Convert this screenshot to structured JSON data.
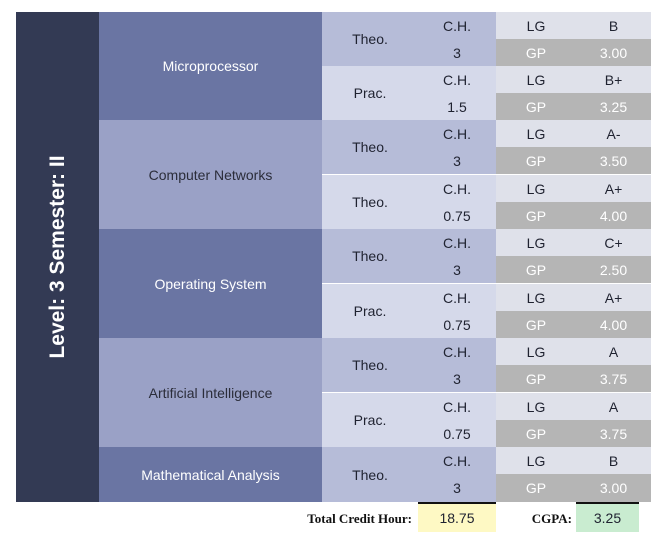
{
  "level_label": "Level: 3 Semester: II",
  "courses": [
    {
      "name": "Microprocessor",
      "parts": [
        {
          "type": "Theo.",
          "ch_label": "C.H.",
          "ch": "3",
          "lg_label": "LG",
          "lg": "B",
          "gp_label": "GP",
          "gp": "3.00"
        },
        {
          "type": "Prac.",
          "ch_label": "C.H.",
          "ch": "1.5",
          "lg_label": "LG",
          "lg": "B+",
          "gp_label": "GP",
          "gp": "3.25"
        }
      ]
    },
    {
      "name": "Computer Networks",
      "parts": [
        {
          "type": "Theo.",
          "ch_label": "C.H.",
          "ch": "3",
          "lg_label": "LG",
          "lg": "A-",
          "gp_label": "GP",
          "gp": "3.50"
        },
        {
          "type": "Theo.",
          "ch_label": "C.H.",
          "ch": "0.75",
          "lg_label": "LG",
          "lg": "A+",
          "gp_label": "GP",
          "gp": "4.00"
        }
      ]
    },
    {
      "name": "Operating System",
      "parts": [
        {
          "type": "Theo.",
          "ch_label": "C.H.",
          "ch": "3",
          "lg_label": "LG",
          "lg": "C+",
          "gp_label": "GP",
          "gp": "2.50"
        },
        {
          "type": "Prac.",
          "ch_label": "C.H.",
          "ch": "0.75",
          "lg_label": "LG",
          "lg": "A+",
          "gp_label": "GP",
          "gp": "4.00"
        }
      ]
    },
    {
      "name": "Artificial Intelligence",
      "parts": [
        {
          "type": "Theo.",
          "ch_label": "C.H.",
          "ch": "3",
          "lg_label": "LG",
          "lg": "A",
          "gp_label": "GP",
          "gp": "3.75"
        },
        {
          "type": "Prac.",
          "ch_label": "C.H.",
          "ch": "0.75",
          "lg_label": "LG",
          "lg": "A",
          "gp_label": "GP",
          "gp": "3.75"
        }
      ]
    },
    {
      "name": "Mathematical Analysis",
      "parts": [
        {
          "type": "Theo.",
          "ch_label": "C.H.",
          "ch": "3",
          "lg_label": "LG",
          "lg": "B",
          "gp_label": "GP",
          "gp": "3.00"
        }
      ]
    }
  ],
  "footer": {
    "total_label": "Total Credit Hour:",
    "total_value": "18.75",
    "cgpa_label": "CGPA:",
    "cgpa_value": "3.25"
  },
  "colors": {
    "level_bg": "#333a54",
    "total_bg": "#fef9c4",
    "cgpa_bg": "#c9ecd0"
  }
}
